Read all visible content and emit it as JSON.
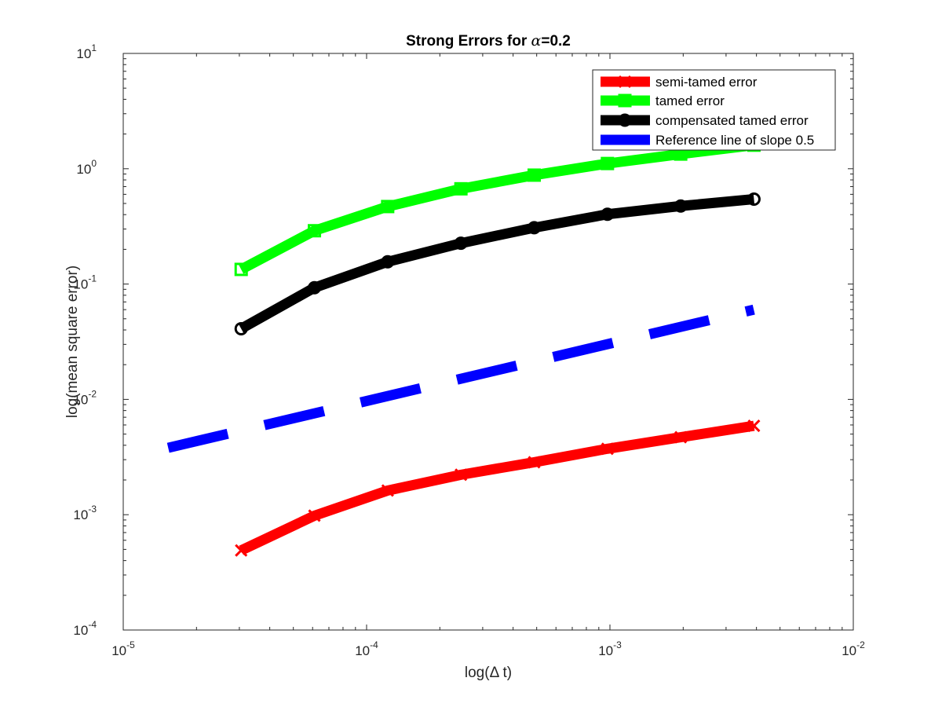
{
  "chart_data": {
    "type": "line",
    "title": "Strong Errors for α=0.2",
    "title_prefix": "Strong Errors for ",
    "title_greek": "α",
    "title_suffix": "=0.2",
    "xlabel": "log(Δ t)",
    "ylabel": "log(mean square error)",
    "x_scale": "log",
    "y_scale": "log",
    "xlim": [
      1e-05,
      0.01
    ],
    "ylim": [
      0.0001,
      10
    ],
    "grid": false,
    "legend_position": "top-right",
    "x_ticks": [
      {
        "value": 1e-05,
        "base": "10",
        "exp": "-5"
      },
      {
        "value": 0.0001,
        "base": "10",
        "exp": "-4"
      },
      {
        "value": 0.001,
        "base": "10",
        "exp": "-3"
      },
      {
        "value": 0.01,
        "base": "10",
        "exp": "-2"
      }
    ],
    "y_ticks": [
      {
        "value": 0.0001,
        "base": "10",
        "exp": "-4"
      },
      {
        "value": 0.001,
        "base": "10",
        "exp": "-3"
      },
      {
        "value": 0.01,
        "base": "10",
        "exp": "-2"
      },
      {
        "value": 0.1,
        "base": "10",
        "exp": "-1"
      },
      {
        "value": 1,
        "base": "10",
        "exp": "0"
      },
      {
        "value": 10,
        "base": "10",
        "exp": "1"
      }
    ],
    "x": [
      3.052e-05,
      6.104e-05,
      0.00012207,
      0.00024414,
      0.00048828,
      0.00097656,
      0.00195313,
      0.00390625
    ],
    "series": [
      {
        "name": "semi-tamed error",
        "color": "#ff0000",
        "marker": "x",
        "dash": "solid",
        "values": [
          0.00049,
          0.00098,
          0.00162,
          0.00222,
          0.00285,
          0.00373,
          0.0047,
          0.0059
        ]
      },
      {
        "name": "tamed error",
        "color": "#00ff00",
        "marker": "square",
        "dash": "solid",
        "values": [
          0.134,
          0.29,
          0.47,
          0.67,
          0.88,
          1.11,
          1.34,
          1.6
        ]
      },
      {
        "name": "compensated tamed error",
        "color": "#000000",
        "marker": "circle",
        "dash": "solid",
        "values": [
          0.041,
          0.093,
          0.156,
          0.226,
          0.308,
          0.403,
          0.475,
          0.545
        ]
      },
      {
        "name": "Reference line of slope 0.5",
        "color": "#0000ff",
        "marker": "none",
        "dash": "dashed",
        "x": [
          1.53e-05,
          0.0039
        ],
        "values": [
          0.0038,
          0.06
        ]
      }
    ]
  }
}
